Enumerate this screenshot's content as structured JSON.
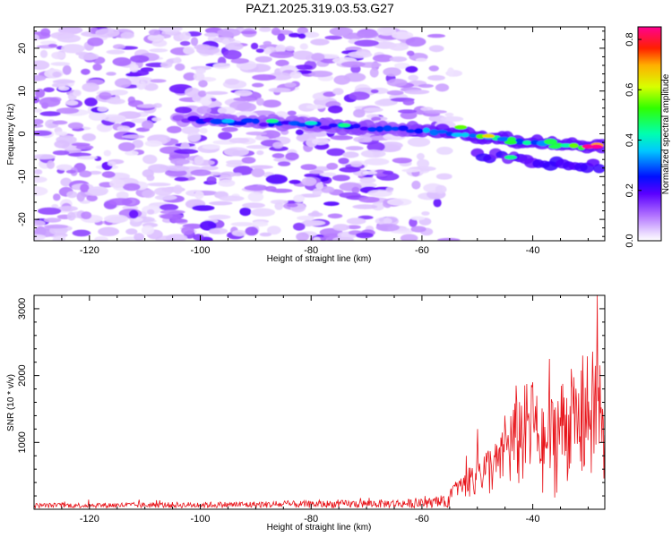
{
  "figure": {
    "title": "PAZ1.2025.319.03.53.G27"
  },
  "chart_data": [
    {
      "type": "heatmap",
      "title": "PAZ1.2025.319.03.53.G27",
      "xlabel": "Height of straight line (km)",
      "ylabel": "Frequency (Hz)",
      "xlim": [
        -130,
        -27
      ],
      "ylim": [
        -25,
        25
      ],
      "x_ticks": [
        -120,
        -100,
        -80,
        -60,
        -40
      ],
      "y_ticks": [
        -20,
        -10,
        0,
        10,
        20
      ],
      "colorbar": {
        "label": "Normalized spectral amplitude",
        "range": [
          0.0,
          0.85
        ],
        "ticks": [
          "0.0",
          "0.2",
          "0.4",
          "0.6",
          "0.8"
        ],
        "colors": [
          "#ffffff",
          "#d8b8ff",
          "#8a2be2",
          "#2200ff",
          "#00e5ff",
          "#00ff40",
          "#d0ff00",
          "#ffb000",
          "#ff0000",
          "#ff0090"
        ]
      },
      "ridge": {
        "description": "frequency of main signal ridge vs height",
        "x": [
          -104,
          -96,
          -88,
          -80,
          -72,
          -64,
          -56,
          -50,
          -44,
          -38,
          -32,
          -27
        ],
        "y": [
          3.5,
          3,
          2.5,
          2,
          1.5,
          1,
          0.5,
          -0.5,
          -1.5,
          -2,
          -3,
          -3
        ],
        "amp": [
          0.2,
          0.3,
          0.3,
          0.3,
          0.35,
          0.3,
          0.45,
          0.55,
          0.5,
          0.45,
          0.7,
          0.85
        ]
      },
      "noise_extent_x": [
        -130,
        -57
      ],
      "noise_extent_y": [
        -25,
        25
      ]
    },
    {
      "type": "line",
      "xlabel": "Height of straight line (km)",
      "ylabel": "SNR (10 * v/v)",
      "xlim": [
        -130,
        -27
      ],
      "ylim": [
        0,
        3200
      ],
      "x_ticks": [
        -120,
        -100,
        -80,
        -60,
        -40
      ],
      "y_ticks": [
        1000,
        2000,
        3000
      ],
      "color": "#e8141a",
      "envelope": {
        "x": [
          -130,
          -100,
          -80,
          -60,
          -55,
          -52,
          -50,
          -48,
          -46,
          -44,
          -42,
          -40,
          -38,
          -36,
          -34,
          -32,
          -30,
          -28,
          -27
        ],
        "y": [
          80,
          100,
          120,
          150,
          200,
          400,
          700,
          800,
          900,
          1400,
          1700,
          1800,
          1300,
          1700,
          1900,
          1800,
          2200,
          2300,
          1100
        ],
        "peaks": [
          [
            -52,
            800
          ],
          [
            -50,
            1200
          ],
          [
            -45,
            1400
          ],
          [
            -43,
            1850
          ],
          [
            -40,
            1900
          ],
          [
            -37,
            2250
          ],
          [
            -33,
            2100
          ],
          [
            -31,
            2300
          ],
          [
            -28.3,
            3200
          ]
        ]
      }
    }
  ]
}
